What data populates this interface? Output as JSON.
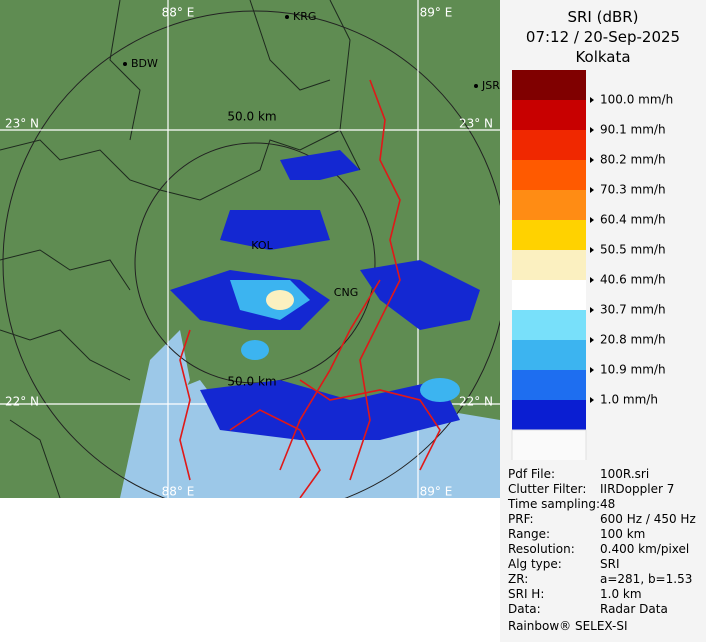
{
  "map": {
    "grid_labels": {
      "lon_88_top": "88° E",
      "lon_89_top": "89° E",
      "lon_88_bottom": "88° E",
      "lon_89_bottom": "89° E",
      "lat_23_left": "23° N",
      "lat_23_right": "23° N",
      "lat_22_left": "22° N",
      "lat_22_right": "22° N"
    },
    "places": [
      "KRG",
      "BDW",
      "JSR",
      "KOL",
      "CNG"
    ],
    "ring_labels": [
      "50.0 km",
      "50.0 km"
    ]
  },
  "panel": {
    "title": "SRI (dBR)",
    "time": "07:12 / 20-Sep-2025",
    "site": "Kolkata",
    "legend": [
      {
        "label": "100.0 mm/h",
        "color": "#c80000"
      },
      {
        "label": "90.1 mm/h",
        "color": "#f02800"
      },
      {
        "label": "80.2 mm/h",
        "color": "#ff5a00"
      },
      {
        "label": "70.3 mm/h",
        "color": "#ff8c14"
      },
      {
        "label": "60.4 mm/h",
        "color": "#ffd200"
      },
      {
        "label": "50.5 mm/h",
        "color": "#fbf0c0"
      },
      {
        "label": "40.6 mm/h",
        "color": "#ffffff"
      },
      {
        "label": "30.7 mm/h",
        "color": "#78e0fa"
      },
      {
        "label": "20.8 mm/h",
        "color": "#3cb4f0"
      },
      {
        "label": "10.9 mm/h",
        "color": "#1e6ef0"
      },
      {
        "label": "1.0 mm/h",
        "color": "#0a1ed2"
      }
    ],
    "legend_top_color": "#800000",
    "metadata": [
      [
        "Pdf File:",
        "100R.sri"
      ],
      [
        "Clutter Filter:",
        "IIRDoppler 7"
      ],
      [
        "Time sampling:",
        "48"
      ],
      [
        "PRF:",
        "600 Hz / 450 Hz"
      ],
      [
        "Range:",
        "100 km"
      ],
      [
        "Resolution:",
        "0.400 km/pixel"
      ],
      [
        "Alg type:",
        "SRI"
      ],
      [
        "ZR:",
        "a=281, b=1.53"
      ],
      [
        "SRI H:",
        "1.0 km"
      ],
      [
        "Data:",
        "Radar Data"
      ]
    ],
    "footer": "Rainbow® SELEX-SI"
  }
}
